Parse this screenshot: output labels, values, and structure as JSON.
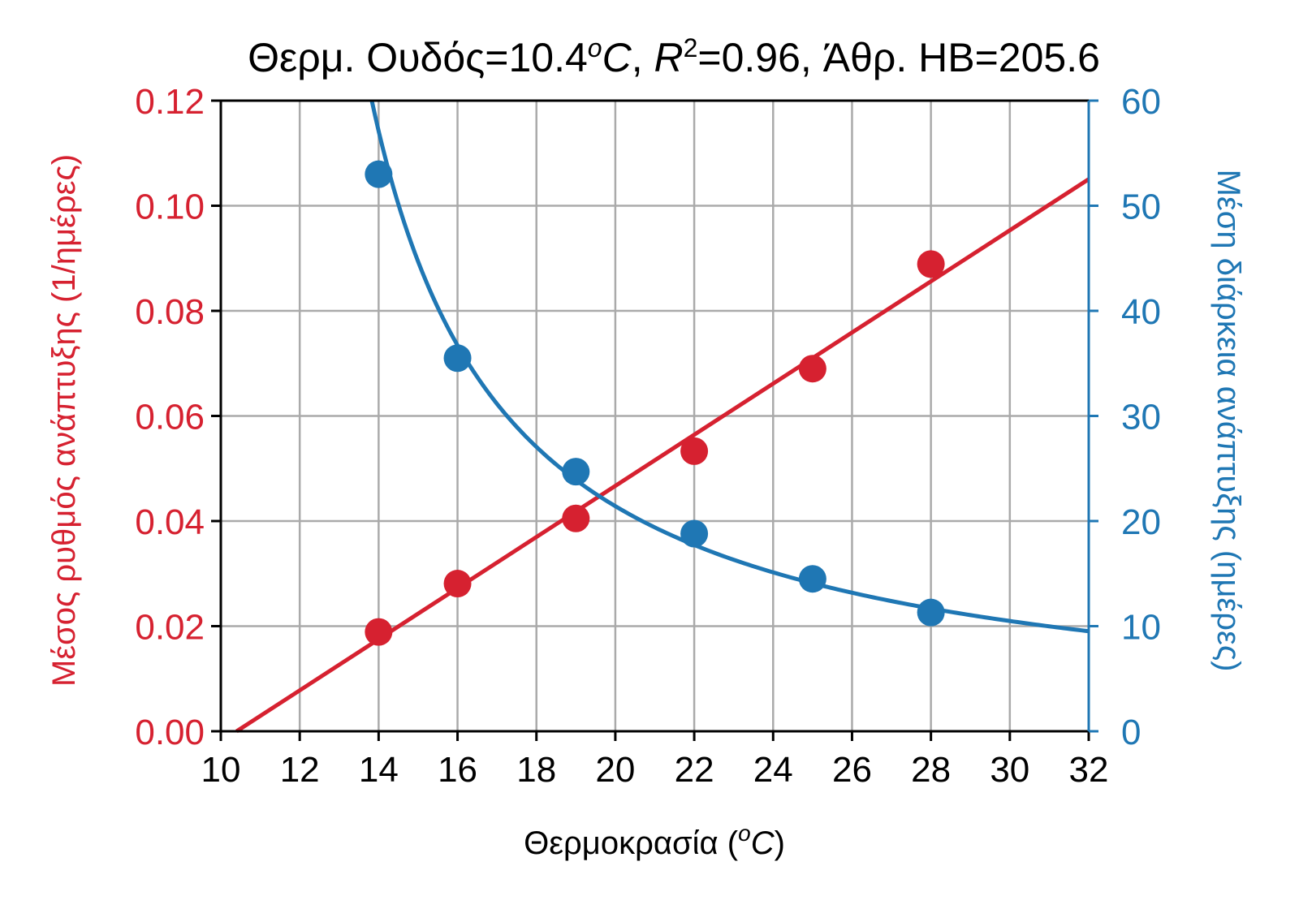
{
  "chart_data": {
    "type": "line",
    "title": {
      "prefix": "Θερμ. Ουδός=10.4",
      "temp_sup": "o",
      "temp_unit": "C",
      "sep1": ", ",
      "r": "R",
      "r_sup": "2",
      "r_value": "=0.96, Άθρ. HB=205.6"
    },
    "xlabel": {
      "prefix": "Θερμοκρασία (",
      "sup": "o",
      "unit": "C",
      "suffix": ")"
    },
    "ylabel_left": "Μέσος ρυθμός ανάπτυξης (1/ημέρες)",
    "ylabel_right": "Μέση διάρκεια ανάπτυξης (ημέρες)",
    "xlim": [
      10,
      32
    ],
    "ylim_left": [
      0,
      0.12
    ],
    "ylim_right": [
      0,
      60
    ],
    "x_ticks": [
      "10",
      "12",
      "14",
      "16",
      "18",
      "20",
      "22",
      "24",
      "26",
      "28",
      "30",
      "32"
    ],
    "y_left_ticks": [
      "0.00",
      "0.02",
      "0.04",
      "0.06",
      "0.08",
      "0.10",
      "0.12"
    ],
    "y_right_ticks": [
      "0",
      "10",
      "20",
      "30",
      "40",
      "50",
      "60"
    ],
    "grid": true,
    "colors": {
      "rate": "#d62130",
      "duration": "#1f77b4",
      "grid": "#aaaaaa",
      "axis": "#000000"
    },
    "series": [
      {
        "axis": "left",
        "points": {
          "x": [
            14,
            16,
            19,
            22,
            25,
            28
          ],
          "y": [
            0.0189,
            0.0281,
            0.0405,
            0.0533,
            0.069,
            0.0889
          ]
        },
        "fit": {
          "kind": "linear",
          "threshold": 10.4,
          "slope": 0.004864
        }
      },
      {
        "axis": "right",
        "points": {
          "x": [
            14,
            16,
            19,
            22,
            25,
            28
          ],
          "y": [
            53.0,
            35.5,
            24.7,
            18.8,
            14.5,
            11.3
          ]
        },
        "fit": {
          "kind": "reciprocal",
          "threshold": 10.4,
          "sum": 205.6
        }
      }
    ]
  }
}
